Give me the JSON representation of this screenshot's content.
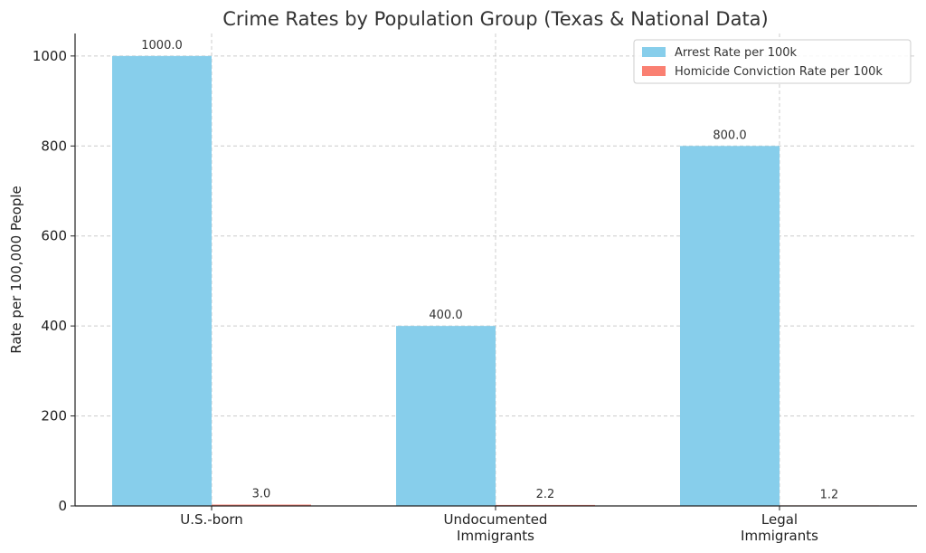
{
  "chart_data": {
    "type": "bar",
    "title": "Crime Rates by Population Group (Texas & National Data)",
    "xlabel": "",
    "ylabel": "Rate per 100,000 People",
    "categories": [
      [
        "U.S.-born"
      ],
      [
        "Undocumented",
        "Immigrants"
      ],
      [
        "Legal",
        "Immigrants"
      ]
    ],
    "series": [
      {
        "name": "Arrest Rate per 100k",
        "values": [
          1000.0,
          400.0,
          800.0
        ],
        "labels": [
          "1000.0",
          "400.0",
          "800.0"
        ],
        "color": "#87CEEB"
      },
      {
        "name": "Homicide Conviction Rate per 100k",
        "values": [
          3.0,
          2.2,
          1.2
        ],
        "labels": [
          "3.0",
          "2.2",
          "1.2"
        ],
        "color": "#FA8072"
      }
    ],
    "ylim": [
      0,
      1050
    ],
    "yticks": [
      0,
      200,
      400,
      600,
      800,
      1000
    ],
    "grid": true,
    "legend_position": "top-right"
  }
}
